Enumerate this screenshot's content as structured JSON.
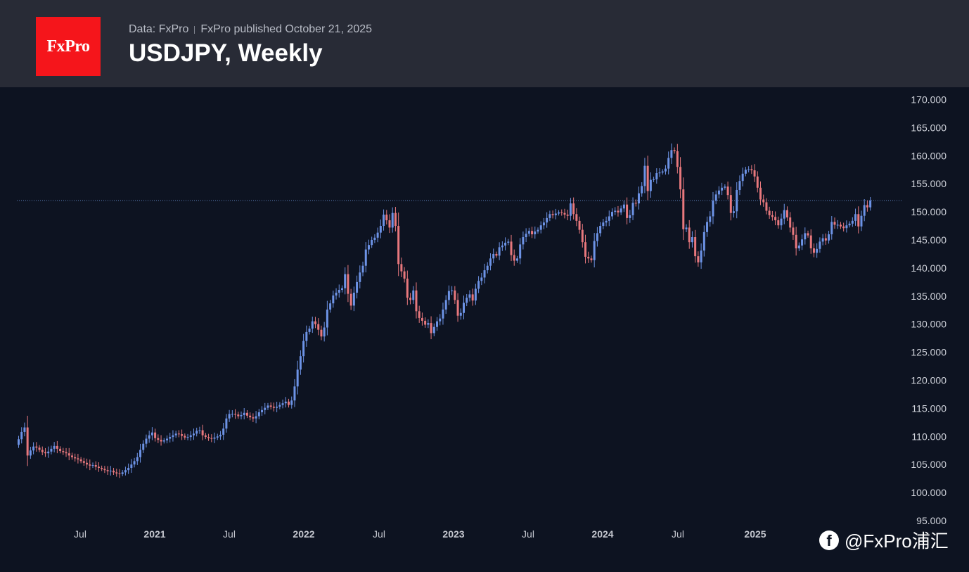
{
  "header": {
    "logo_text": "FxPro",
    "data_source": "Data: FxPro",
    "published": "FxPro published October 21, 2025",
    "title": "USDJPY, Weekly"
  },
  "watermark": {
    "icon": "facebook-icon",
    "text": "@FxPro浦汇"
  },
  "colors": {
    "background": "#0d1321",
    "header_bg": "#282b36",
    "logo_bg": "#f5151b",
    "up_candle": "#6d93e6",
    "down_candle": "#e8787d",
    "price_line": "#5b7fb8"
  },
  "chart_data": {
    "type": "candlestick",
    "title": "USDJPY, Weekly",
    "ylim": [
      95,
      170
    ],
    "y_ticks": [
      "170.000",
      "165.000",
      "160.000",
      "155.000",
      "150.000",
      "145.000",
      "140.000",
      "135.000",
      "130.000",
      "125.000",
      "120.000",
      "115.000",
      "110.000",
      "105.000",
      "100.000",
      "95.000"
    ],
    "x_ticks": [
      {
        "label": "Jul",
        "bold": false
      },
      {
        "label": "2021",
        "bold": true
      },
      {
        "label": "Jul",
        "bold": false
      },
      {
        "label": "2022",
        "bold": true
      },
      {
        "label": "Jul",
        "bold": false
      },
      {
        "label": "2023",
        "bold": true
      },
      {
        "label": "Jul",
        "bold": false
      },
      {
        "label": "2024",
        "bold": true
      },
      {
        "label": "Jul",
        "bold": false
      },
      {
        "label": "2025",
        "bold": true
      }
    ],
    "current_price": 152.0,
    "closes": [
      109.5,
      110.8,
      111.6,
      106.6,
      107.5,
      108.2,
      108.0,
      107.6,
      107.2,
      107.0,
      107.3,
      107.8,
      108.3,
      107.8,
      107.4,
      107.2,
      107.0,
      106.6,
      106.3,
      106.1,
      105.9,
      105.6,
      105.3,
      105.0,
      104.8,
      104.9,
      104.6,
      104.4,
      104.2,
      104.0,
      103.8,
      103.9,
      103.6,
      103.4,
      103.3,
      103.6,
      104.0,
      104.4,
      105.0,
      105.6,
      106.3,
      107.6,
      108.7,
      109.6,
      110.2,
      110.7,
      109.7,
      109.4,
      109.1,
      109.3,
      109.6,
      109.9,
      110.2,
      110.5,
      110.4,
      110.1,
      109.8,
      109.9,
      110.2,
      110.5,
      111.0,
      111.1,
      110.2,
      109.9,
      109.7,
      109.6,
      109.8,
      110.0,
      110.3,
      111.4,
      113.2,
      114.0,
      114.0,
      113.9,
      113.6,
      113.8,
      114.2,
      113.7,
      113.4,
      113.2,
      113.6,
      114.3,
      114.7,
      115.1,
      115.5,
      115.3,
      115.1,
      115.3,
      115.6,
      115.9,
      116.2,
      115.6,
      116.4,
      118.9,
      121.9,
      124.3,
      127.0,
      128.6,
      129.2,
      130.5,
      130.0,
      129.0,
      127.8,
      129.4,
      132.6,
      133.7,
      135.1,
      135.6,
      136.1,
      136.4,
      138.9,
      135.4,
      133.3,
      135.6,
      137.5,
      139.2,
      140.4,
      143.3,
      144.1,
      145.0,
      145.4,
      146.3,
      147.5,
      149.5,
      148.5,
      147.2,
      149.8,
      147.5,
      140.7,
      139.4,
      138.1,
      134.7,
      134.3,
      136.0,
      132.3,
      131.1,
      130.6,
      129.9,
      130.2,
      128.4,
      129.5,
      130.5,
      131.0,
      132.6,
      134.3,
      135.9,
      136.0,
      134.3,
      131.5,
      132.0,
      133.8,
      134.7,
      135.3,
      134.2,
      136.3,
      137.7,
      138.3,
      139.6,
      140.4,
      141.7,
      142.5,
      142.2,
      143.7,
      144.0,
      144.5,
      144.7,
      142.3,
      141.3,
      141.7,
      144.2,
      145.5,
      146.1,
      146.6,
      146.0,
      146.5,
      146.8,
      147.6,
      148.1,
      148.9,
      149.6,
      149.4,
      149.7,
      149.9,
      149.8,
      149.5,
      149.3,
      151.5,
      149.6,
      148.4,
      146.8,
      144.6,
      142.0,
      141.7,
      141.4,
      144.8,
      146.2,
      147.5,
      148.1,
      148.4,
      149.2,
      150.0,
      150.2,
      149.9,
      150.6,
      151.3,
      148.9,
      149.4,
      151.6,
      151.5,
      153.3,
      154.6,
      158.2,
      153.7,
      155.7,
      155.8,
      156.9,
      157.0,
      157.2,
      157.7,
      159.6,
      161.0,
      160.8,
      158.0,
      154.0,
      146.9,
      147.2,
      144.6,
      145.5,
      142.1,
      141.0,
      143.1,
      146.4,
      148.2,
      149.2,
      152.0,
      153.1,
      153.8,
      154.3,
      154.5,
      153.0,
      149.8,
      150.1,
      153.9,
      155.5,
      156.8,
      157.5,
      157.6,
      157.4,
      156.3,
      154.3,
      152.2,
      151.7,
      150.2,
      149.4,
      149.1,
      148.5,
      147.6,
      148.8,
      150.3,
      149.0,
      147.2,
      145.9,
      143.5,
      144.0,
      145.1,
      146.2,
      145.8,
      143.5,
      142.7,
      143.4,
      144.7,
      145.3,
      144.9,
      146.0,
      148.2,
      147.7,
      147.7,
      147.4,
      147.1,
      147.6,
      147.9,
      148.4,
      149.6,
      147.4,
      149.3,
      151.2,
      150.8,
      152.0
    ]
  }
}
